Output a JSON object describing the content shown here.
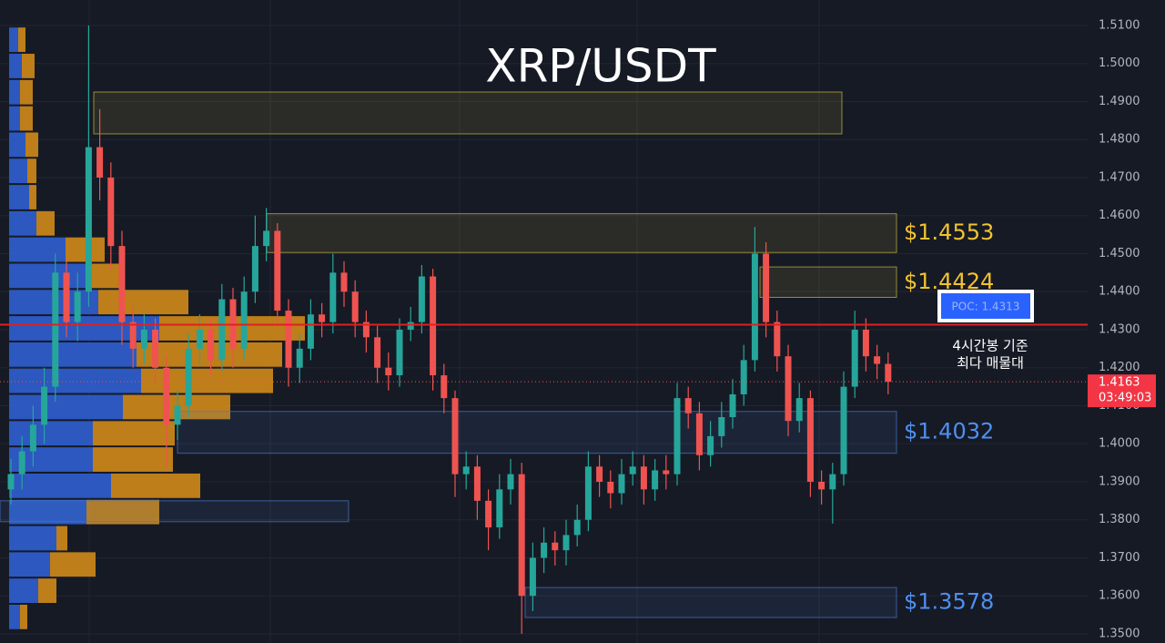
{
  "chart_data": {
    "type": "candlestick",
    "title": "XRP/USDT",
    "ylim": [
      1.3476,
      1.5167
    ],
    "yticks": [
      {
        "value": 1.35,
        "label": "1.3500"
      },
      {
        "value": 1.36,
        "label": "1.3600"
      },
      {
        "value": 1.37,
        "label": "1.3700"
      },
      {
        "value": 1.38,
        "label": "1.3800"
      },
      {
        "value": 1.39,
        "label": "1.3900"
      },
      {
        "value": 1.4,
        "label": "1.4000"
      },
      {
        "value": 1.41,
        "label": "1.4100"
      },
      {
        "value": 1.42,
        "label": "1.4200"
      },
      {
        "value": 1.43,
        "label": "1.4300"
      },
      {
        "value": 1.44,
        "label": "1.4400"
      },
      {
        "value": 1.45,
        "label": "1.4500"
      },
      {
        "value": 1.46,
        "label": "1.4600"
      },
      {
        "value": 1.47,
        "label": "1.4700"
      },
      {
        "value": 1.48,
        "label": "1.4800"
      },
      {
        "value": 1.49,
        "label": "1.4900"
      },
      {
        "value": 1.5,
        "label": "1.5000"
      },
      {
        "value": 1.51,
        "label": "1.5100"
      }
    ],
    "up_color": "#26a69a",
    "down_color": "#ef5350",
    "open": [
      1.388,
      1.392,
      1.398,
      1.405,
      1.415,
      1.445,
      1.432,
      1.44,
      1.478,
      1.47,
      1.452,
      1.432,
      1.425,
      1.43,
      1.42,
      1.405,
      1.41,
      1.425,
      1.43,
      1.422,
      1.438,
      1.425,
      1.44,
      1.452,
      1.456,
      1.435,
      1.42,
      1.425,
      1.434,
      1.432,
      1.445,
      1.44,
      1.432,
      1.428,
      1.42,
      1.418,
      1.43,
      1.432,
      1.444,
      1.418,
      1.412,
      1.392,
      1.394,
      1.385,
      1.378,
      1.388,
      1.392,
      1.36,
      1.37,
      1.374,
      1.372,
      1.376,
      1.38,
      1.394,
      1.39,
      1.387,
      1.392,
      1.394,
      1.388,
      1.393,
      1.392,
      1.412,
      1.408,
      1.397,
      1.402,
      1.407,
      1.413,
      1.422,
      1.45,
      1.432,
      1.423,
      1.406,
      1.412,
      1.39,
      1.388,
      1.392,
      1.415,
      1.43,
      1.423,
      1.421
    ],
    "high": [
      1.396,
      1.402,
      1.41,
      1.42,
      1.45,
      1.448,
      1.445,
      1.51,
      1.488,
      1.474,
      1.456,
      1.436,
      1.434,
      1.433,
      1.423,
      1.414,
      1.429,
      1.434,
      1.433,
      1.442,
      1.441,
      1.444,
      1.46,
      1.462,
      1.458,
      1.438,
      1.429,
      1.438,
      1.437,
      1.45,
      1.448,
      1.443,
      1.435,
      1.431,
      1.424,
      1.433,
      1.436,
      1.447,
      1.446,
      1.421,
      1.414,
      1.398,
      1.397,
      1.388,
      1.392,
      1.396,
      1.395,
      1.374,
      1.378,
      1.377,
      1.38,
      1.384,
      1.398,
      1.397,
      1.393,
      1.396,
      1.398,
      1.397,
      1.396,
      1.397,
      1.416,
      1.415,
      1.411,
      1.406,
      1.411,
      1.417,
      1.426,
      1.457,
      1.453,
      1.435,
      1.426,
      1.416,
      1.414,
      1.393,
      1.395,
      1.419,
      1.435,
      1.433,
      1.426,
      1.424
    ],
    "low": [
      1.384,
      1.388,
      1.394,
      1.4,
      1.411,
      1.428,
      1.427,
      1.436,
      1.464,
      1.446,
      1.426,
      1.42,
      1.421,
      1.416,
      1.394,
      1.401,
      1.407,
      1.421,
      1.418,
      1.419,
      1.42,
      1.422,
      1.437,
      1.448,
      1.431,
      1.415,
      1.416,
      1.422,
      1.428,
      1.429,
      1.436,
      1.428,
      1.424,
      1.416,
      1.414,
      1.415,
      1.427,
      1.429,
      1.414,
      1.408,
      1.386,
      1.388,
      1.38,
      1.372,
      1.375,
      1.384,
      1.35,
      1.356,
      1.366,
      1.368,
      1.368,
      1.373,
      1.377,
      1.386,
      1.383,
      1.384,
      1.389,
      1.384,
      1.385,
      1.388,
      1.389,
      1.404,
      1.393,
      1.394,
      1.399,
      1.404,
      1.41,
      1.419,
      1.428,
      1.419,
      1.402,
      1.403,
      1.386,
      1.384,
      1.379,
      1.389,
      1.412,
      1.419,
      1.417,
      1.413
    ],
    "close": [
      1.392,
      1.398,
      1.405,
      1.415,
      1.445,
      1.432,
      1.44,
      1.478,
      1.47,
      1.452,
      1.432,
      1.425,
      1.43,
      1.42,
      1.405,
      1.41,
      1.425,
      1.43,
      1.422,
      1.438,
      1.425,
      1.44,
      1.452,
      1.456,
      1.435,
      1.42,
      1.425,
      1.434,
      1.432,
      1.445,
      1.44,
      1.432,
      1.428,
      1.42,
      1.418,
      1.43,
      1.432,
      1.444,
      1.418,
      1.412,
      1.392,
      1.394,
      1.385,
      1.378,
      1.388,
      1.392,
      1.36,
      1.37,
      1.374,
      1.372,
      1.376,
      1.38,
      1.394,
      1.39,
      1.387,
      1.392,
      1.394,
      1.388,
      1.393,
      1.392,
      1.412,
      1.408,
      1.397,
      1.402,
      1.407,
      1.413,
      1.422,
      1.45,
      1.432,
      1.423,
      1.406,
      1.412,
      1.39,
      1.388,
      1.392,
      1.415,
      1.43,
      1.423,
      1.421,
      1.4163
    ],
    "volume_profile": {
      "bins": [
        1.351,
        1.3579,
        1.3648,
        1.3717,
        1.3786,
        1.3855,
        1.3924,
        1.3993,
        1.4062,
        1.4131,
        1.42,
        1.4269,
        1.4338,
        1.4407,
        1.4476,
        1.4545,
        1.4614,
        1.4683,
        1.4752,
        1.4821,
        1.489,
        1.4959,
        1.5028,
        1.5097
      ],
      "buy": [
        12,
        32,
        45,
        52,
        85,
        112,
        92,
        92,
        125,
        145,
        140,
        165,
        98,
        85,
        62,
        30,
        22,
        20,
        18,
        12,
        12,
        14,
        10
      ],
      "sell": [
        8,
        20,
        50,
        12,
        80,
        98,
        88,
        90,
        118,
        145,
        160,
        160,
        99,
        40,
        43,
        20,
        8,
        10,
        14,
        14,
        14,
        14,
        8
      ],
      "buy_color": "#2f5fd0",
      "sell_color": "#d08a1a"
    },
    "zones": [
      {
        "low": 1.4815,
        "high": 1.4925,
        "color": "#c8b840"
      },
      {
        "low": 1.4503,
        "high": 1.4605,
        "color": "#c8b840",
        "label": "$1.4553"
      },
      {
        "low": 1.4385,
        "high": 1.4465,
        "color": "#c8b840",
        "label": "$1.4424"
      },
      {
        "low": 1.3975,
        "high": 1.4085,
        "color": "#4a78c8",
        "label": "$1.4032"
      },
      {
        "low": 1.3795,
        "high": 1.385,
        "color": "#4a78c8"
      },
      {
        "low": 1.3543,
        "high": 1.3622,
        "color": "#4a78c8",
        "label": "$1.3578"
      }
    ],
    "poc": 1.4313,
    "poc_label": "POC: 1.4313",
    "annotations": [
      "4시간봉 기준",
      "최다 매물대"
    ],
    "last_price": 1.4163,
    "countdown": "03:49:03"
  }
}
